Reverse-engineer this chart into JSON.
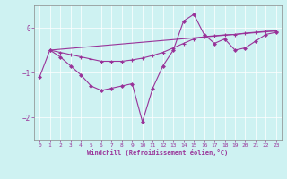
{
  "xlabel": "Windchill (Refroidissement éolien,°C)",
  "background_color": "#cef2f2",
  "line_color": "#993399",
  "xlim": [
    -0.5,
    23.5
  ],
  "ylim": [
    -2.5,
    0.5
  ],
  "yticks": [
    0,
    -1,
    -2
  ],
  "xticks": [
    0,
    1,
    2,
    3,
    4,
    5,
    6,
    7,
    8,
    9,
    10,
    11,
    12,
    13,
    14,
    15,
    16,
    17,
    18,
    19,
    20,
    21,
    22,
    23
  ],
  "series1_x": [
    0,
    1,
    2,
    3,
    4,
    5,
    6,
    7,
    8,
    9,
    10,
    11,
    12,
    13,
    14,
    15,
    16,
    17,
    18,
    19,
    20,
    21,
    22,
    23
  ],
  "series1_y": [
    -1.1,
    -0.5,
    -0.65,
    -0.85,
    -1.05,
    -1.3,
    -1.4,
    -1.35,
    -1.3,
    -1.25,
    -2.1,
    -1.35,
    -0.85,
    -0.5,
    0.15,
    0.3,
    -0.15,
    -0.35,
    -0.25,
    -0.5,
    -0.45,
    -0.3,
    -0.15,
    -0.1
  ],
  "series2_x": [
    1,
    2,
    3,
    4,
    5,
    6,
    7,
    8,
    9,
    10,
    11,
    12,
    13,
    14,
    15,
    16,
    17,
    18,
    19,
    20,
    21,
    22,
    23
  ],
  "series2_y": [
    -0.5,
    -0.55,
    -0.6,
    -0.65,
    -0.7,
    -0.75,
    -0.75,
    -0.75,
    -0.72,
    -0.68,
    -0.62,
    -0.55,
    -0.45,
    -0.35,
    -0.25,
    -0.2,
    -0.18,
    -0.16,
    -0.15,
    -0.12,
    -0.1,
    -0.08,
    -0.07
  ],
  "series3_x": [
    1,
    23
  ],
  "series3_y": [
    -0.5,
    -0.07
  ]
}
